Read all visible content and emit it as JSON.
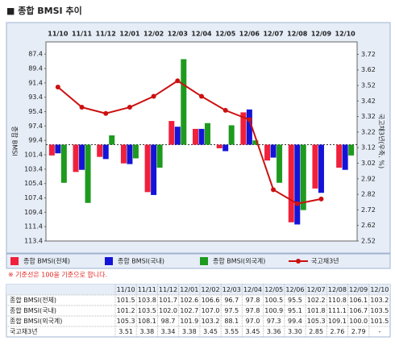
{
  "header": {
    "title": "■ 종합 BMSI 추이"
  },
  "chart_data": {
    "type": "bar",
    "categories": [
      "11/10",
      "11/11",
      "11/12",
      "12/01",
      "12/02",
      "12/03",
      "12/04",
      "12/05",
      "12/06",
      "12/07",
      "12/08",
      "12/09",
      "12/10"
    ],
    "y_label": "종합 BMSI",
    "y2_label": "국고채3년(우축, %)",
    "ylim": [
      85.7,
      113.4
    ],
    "y_inverted": true,
    "yticks": [
      87.4,
      89.4,
      91.4,
      93.4,
      95.4,
      97.4,
      99.4,
      101.4,
      103.4,
      105.4,
      107.4,
      109.4,
      111.4,
      113.4
    ],
    "y2lim": [
      2.52,
      3.8
    ],
    "y2ticks": [
      3.72,
      3.62,
      3.52,
      3.42,
      3.32,
      3.22,
      3.12,
      3.02,
      2.92,
      2.82,
      2.72,
      2.62,
      2.52
    ],
    "reference_line": 100,
    "series": [
      {
        "name": "종합 BMSI(전체)",
        "color": "#f0203c",
        "type": "bar",
        "values": [
          101.5,
          103.8,
          101.7,
          102.6,
          106.6,
          96.7,
          97.8,
          100.5,
          95.5,
          102.2,
          110.8,
          106.1,
          103.2
        ]
      },
      {
        "name": "종합 BMSI(국내)",
        "color": "#1414d8",
        "type": "bar",
        "values": [
          101.2,
          103.5,
          102.0,
          102.7,
          107.0,
          97.5,
          97.8,
          100.9,
          95.1,
          101.8,
          111.1,
          106.7,
          103.5
        ]
      },
      {
        "name": "종합 BMSI(외국계)",
        "color": "#1e9a1e",
        "type": "bar",
        "values": [
          105.3,
          108.1,
          98.7,
          101.9,
          103.2,
          88.1,
          97.0,
          97.3,
          99.4,
          105.3,
          109.1,
          100.0,
          101.5
        ]
      },
      {
        "name": "국고채3년",
        "color": "#cc1010",
        "type": "line",
        "axis": "y2",
        "values": [
          3.51,
          3.38,
          3.34,
          3.38,
          3.45,
          3.55,
          3.45,
          3.36,
          3.3,
          2.85,
          2.76,
          2.79,
          null
        ]
      }
    ]
  },
  "note": "※ 기준선은 100을 기준으로 합니다.",
  "table": {
    "header": [
      "11/10",
      "11/11",
      "11/12",
      "12/01",
      "12/02",
      "12/03",
      "12/04",
      "12/05",
      "12/06",
      "12/07",
      "12/08",
      "12/09",
      "12/10"
    ],
    "rows": [
      [
        "종합 BMSI(전체)",
        "101.5",
        "103.8",
        "101.7",
        "102.6",
        "106.6",
        "96.7",
        "97.8",
        "100.5",
        "95.5",
        "102.2",
        "110.8",
        "106.1",
        "103.2"
      ],
      [
        "종합 BMSI(국내)",
        "101.2",
        "103.5",
        "102.0",
        "102.7",
        "107.0",
        "97.5",
        "97.8",
        "100.9",
        "95.1",
        "101.8",
        "111.1",
        "106.7",
        "103.5"
      ],
      [
        "종합 BMSI(외국계)",
        "105.3",
        "108.1",
        "98.7",
        "101.9",
        "103.2",
        "88.1",
        "97.0",
        "97.3",
        "99.4",
        "105.3",
        "109.1",
        "100.0",
        "101.5"
      ],
      [
        "국고채3년",
        "3.51",
        "3.38",
        "3.34",
        "3.38",
        "3.45",
        "3.55",
        "3.45",
        "3.36",
        "3.30",
        "2.85",
        "2.76",
        "2.79",
        "-"
      ]
    ]
  }
}
